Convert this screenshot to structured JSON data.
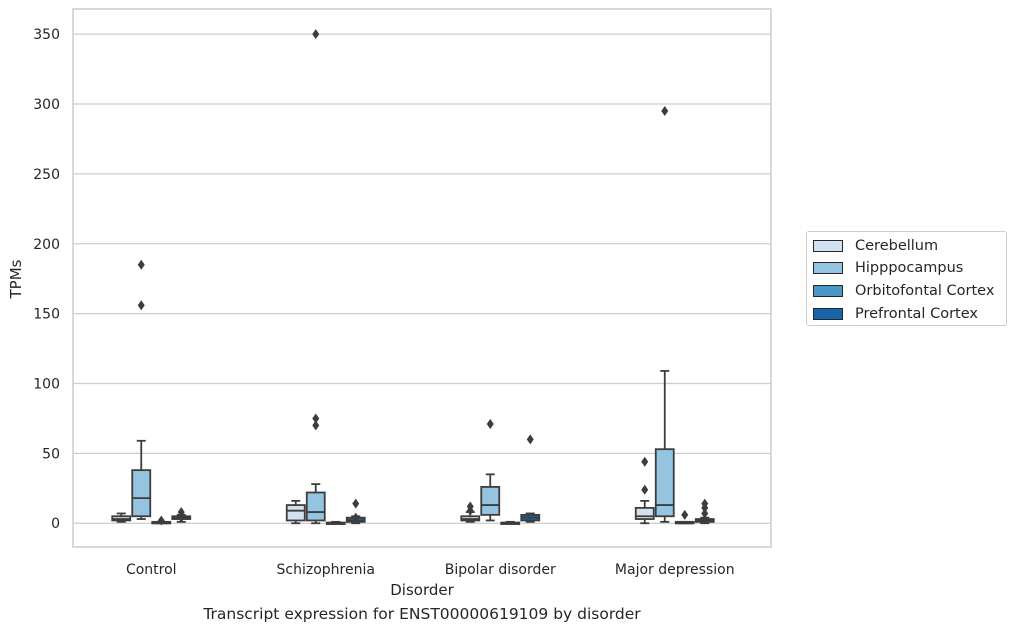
{
  "chart_data": {
    "type": "box",
    "xlabel": "Disorder",
    "ylabel": "TPMs",
    "caption": "Transcript expression for ENST00000619109 by disorder",
    "ylim": [
      -17,
      368
    ],
    "yticks": [
      0,
      50,
      100,
      150,
      200,
      250,
      300,
      350
    ],
    "grid": "horizontal",
    "legend_position": "right",
    "categories": [
      "Control",
      "Schizophrenia",
      "Bipolar disorder",
      "Major depression"
    ],
    "series": [
      {
        "name": "Cerebellum",
        "color": "#d0e1f2",
        "boxes": [
          {
            "whisker_low": 1,
            "q1": 2,
            "median": 3,
            "q3": 5,
            "whisker_high": 7,
            "outliers": []
          },
          {
            "whisker_low": 0,
            "q1": 2,
            "median": 9,
            "q3": 13,
            "whisker_high": 16,
            "outliers": []
          },
          {
            "whisker_low": 1,
            "q1": 2,
            "median": 3,
            "q3": 5,
            "whisker_high": 8,
            "outliers": [
              12,
              9
            ]
          },
          {
            "whisker_low": 0,
            "q1": 3,
            "median": 5,
            "q3": 11,
            "whisker_high": 16,
            "outliers": [
              24,
              44
            ]
          }
        ]
      },
      {
        "name": "Hipppocampus",
        "color": "#94c4df",
        "boxes": [
          {
            "whisker_low": 3,
            "q1": 5,
            "median": 18,
            "q3": 38,
            "whisker_high": 59,
            "outliers": [
              156,
              185
            ]
          },
          {
            "whisker_low": 0,
            "q1": 2,
            "median": 8,
            "q3": 22,
            "whisker_high": 28,
            "outliers": [
              70,
              75,
              350
            ]
          },
          {
            "whisker_low": 2,
            "q1": 6,
            "median": 13,
            "q3": 26,
            "whisker_high": 35,
            "outliers": [
              71
            ]
          },
          {
            "whisker_low": 1,
            "q1": 5,
            "median": 13,
            "q3": 53,
            "whisker_high": 109,
            "outliers": [
              295
            ]
          }
        ]
      },
      {
        "name": "Orbitofontal Cortex",
        "color": "#4a98c9",
        "boxes": [
          {
            "whisker_low": 0,
            "q1": 0,
            "median": 0,
            "q3": 1,
            "whisker_high": 1,
            "outliers": [
              2
            ]
          },
          {
            "whisker_low": 0,
            "q1": 0,
            "median": 0,
            "q3": 0.5,
            "whisker_high": 1,
            "outliers": []
          },
          {
            "whisker_low": 0,
            "q1": 0,
            "median": 0,
            "q3": 0.5,
            "whisker_high": 1,
            "outliers": []
          },
          {
            "whisker_low": 0,
            "q1": 0,
            "median": 0,
            "q3": 1,
            "whisker_high": 1,
            "outliers": [
              6
            ]
          }
        ]
      },
      {
        "name": "Prefrontal Cortex",
        "color": "#1764ab",
        "boxes": [
          {
            "whisker_low": 1,
            "q1": 3,
            "median": 4,
            "q3": 5,
            "whisker_high": 6,
            "outliers": [
              8,
              4
            ]
          },
          {
            "whisker_low": 0,
            "q1": 1,
            "median": 2,
            "q3": 4,
            "whisker_high": 5,
            "outliers": [
              14,
              4
            ]
          },
          {
            "whisker_low": 1,
            "q1": 2,
            "median": 4,
            "q3": 6,
            "whisker_high": 7,
            "outliers": [
              60
            ]
          },
          {
            "whisker_low": 0,
            "q1": 1,
            "median": 2,
            "q3": 3,
            "whisker_high": 4,
            "outliers": [
              14,
              11,
              7
            ]
          }
        ]
      }
    ]
  }
}
